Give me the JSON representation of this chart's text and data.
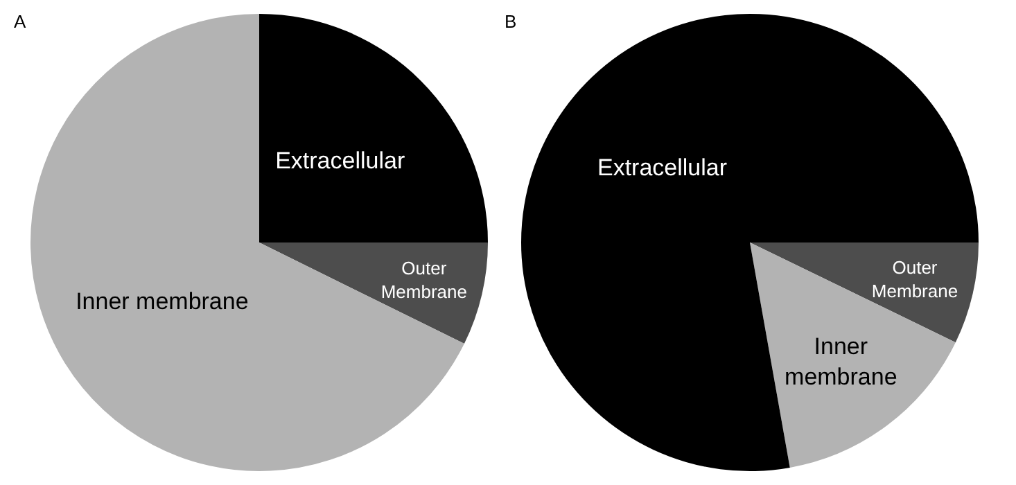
{
  "chart_data": [
    {
      "type": "pie",
      "title": "A",
      "categories": [
        "Extracellular",
        "Outer Membrane",
        "Inner membrane"
      ],
      "values": [
        25,
        7.3,
        67.7
      ],
      "colors": [
        "#000000",
        "#4d4d4d",
        "#b3b3b3"
      ],
      "legend": false
    },
    {
      "type": "pie",
      "title": "B",
      "categories": [
        "Outer Membrane",
        "Inner membrane",
        "Extracellular"
      ],
      "values": [
        7.2,
        15,
        77.8
      ],
      "colors": [
        "#4d4d4d",
        "#b3b3b3",
        "#000000"
      ],
      "legend": false
    }
  ]
}
